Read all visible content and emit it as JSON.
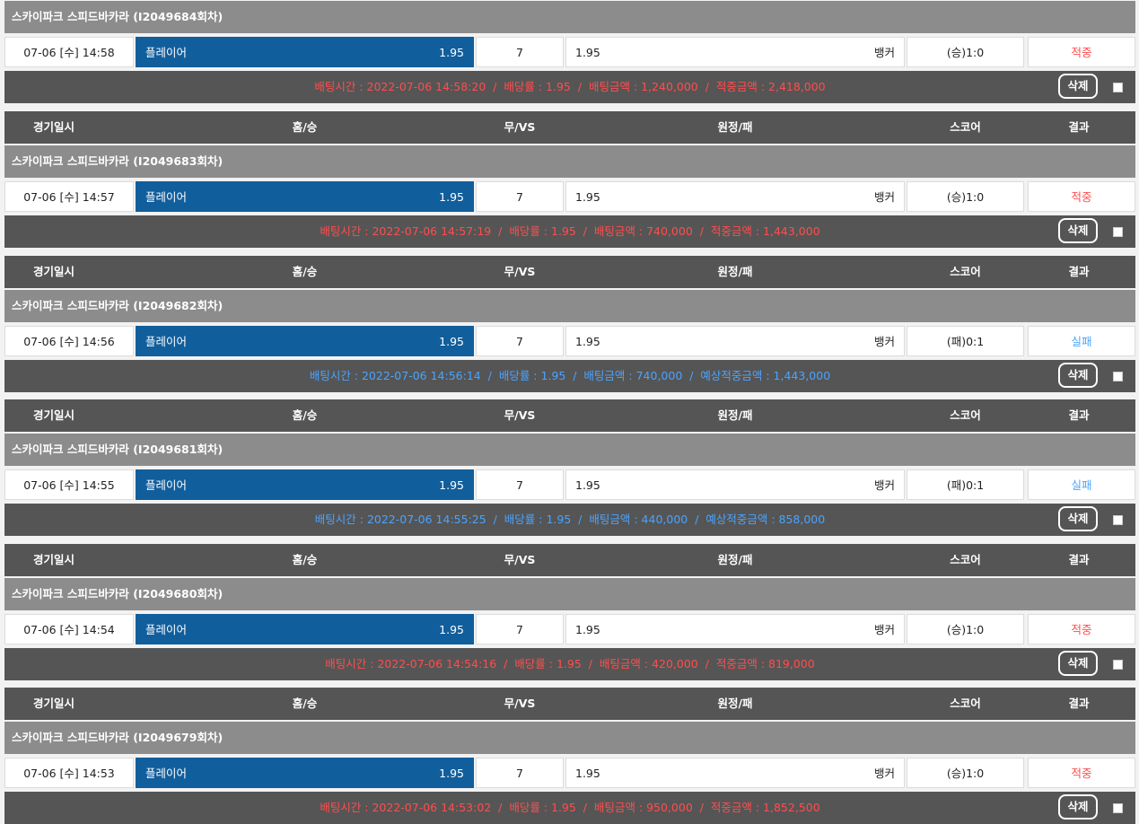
{
  "header": {
    "date_label": "경기일시",
    "home_label": "홈/승",
    "draw_label": "무/VS",
    "away_label": "원정/패",
    "score_label": "스코어",
    "result_label": "결과"
  },
  "delete_label": "삭제",
  "bets": [
    {
      "title": "스카이파크 스피드바카라 (I2049684회차)",
      "date": "07-06 [수] 14:58",
      "home": "플레이어",
      "home_odds": "1.95",
      "draw": "7",
      "away_odds": "1.95",
      "away": "뱅커",
      "score": "(승)1:0",
      "result": "적중",
      "status": "win",
      "info": "배팅시간 : 2022-07-06 14:58:20  /  배당률 : 1.95  /  배팅금액 : 1,240,000  /  적중금액 : 2,418,000"
    },
    {
      "title": "스카이파크 스피드바카라 (I2049683회차)",
      "date": "07-06 [수] 14:57",
      "home": "플레이어",
      "home_odds": "1.95",
      "draw": "7",
      "away_odds": "1.95",
      "away": "뱅커",
      "score": "(승)1:0",
      "result": "적중",
      "status": "win",
      "info": "배팅시간 : 2022-07-06 14:57:19  /  배당률 : 1.95  /  배팅금액 : 740,000  /  적중금액 : 1,443,000"
    },
    {
      "title": "스카이파크 스피드바카라 (I2049682회차)",
      "date": "07-06 [수] 14:56",
      "home": "플레이어",
      "home_odds": "1.95",
      "draw": "7",
      "away_odds": "1.95",
      "away": "뱅커",
      "score": "(패)0:1",
      "result": "실패",
      "status": "lose",
      "info": "배팅시간 : 2022-07-06 14:56:14  /  배당률 : 1.95  /  배팅금액 : 740,000  /  예상적중금액 : 1,443,000"
    },
    {
      "title": "스카이파크 스피드바카라 (I2049681회차)",
      "date": "07-06 [수] 14:55",
      "home": "플레이어",
      "home_odds": "1.95",
      "draw": "7",
      "away_odds": "1.95",
      "away": "뱅커",
      "score": "(패)0:1",
      "result": "실패",
      "status": "lose",
      "info": "배팅시간 : 2022-07-06 14:55:25  /  배당률 : 1.95  /  배팅금액 : 440,000  /  예상적중금액 : 858,000"
    },
    {
      "title": "스카이파크 스피드바카라 (I2049680회차)",
      "date": "07-06 [수] 14:54",
      "home": "플레이어",
      "home_odds": "1.95",
      "draw": "7",
      "away_odds": "1.95",
      "away": "뱅커",
      "score": "(승)1:0",
      "result": "적중",
      "status": "win",
      "info": "배팅시간 : 2022-07-06 14:54:16  /  배당률 : 1.95  /  배팅금액 : 420,000  /  적중금액 : 819,000"
    },
    {
      "title": "스카이파크 스피드바카라 (I2049679회차)",
      "date": "07-06 [수] 14:53",
      "home": "플레이어",
      "home_odds": "1.95",
      "draw": "7",
      "away_odds": "1.95",
      "away": "뱅커",
      "score": "(승)1:0",
      "result": "적중",
      "status": "win",
      "info": "배팅시간 : 2022-07-06 14:53:02  /  배당률 : 1.95  /  배팅금액 : 950,000  /  적중금액 : 1,852,500"
    }
  ]
}
